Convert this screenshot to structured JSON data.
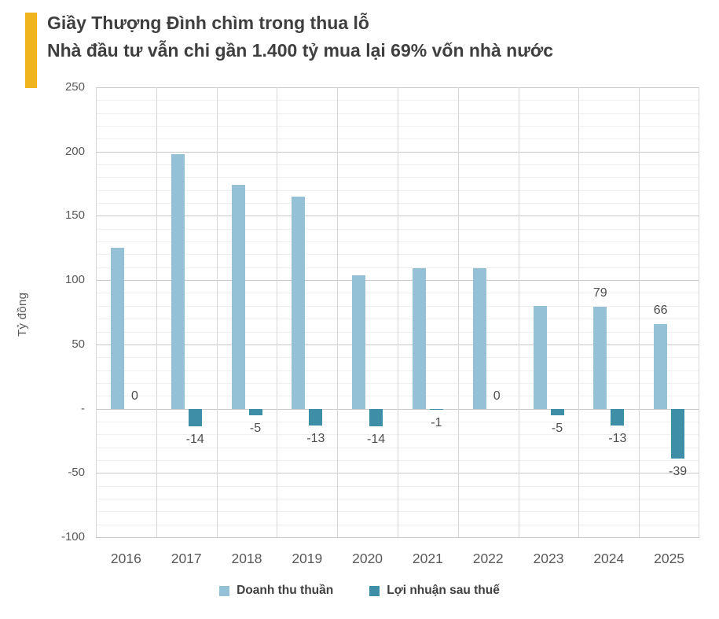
{
  "accent_color": "#F0B41E",
  "header": {
    "title_line1": "Giầy Thượng Đình chìm trong thua lỗ",
    "title_line2": "Nhà đầu tư vẫn chi gần 1.400 tỷ mua lại 69% vốn nhà nước"
  },
  "chart_data": {
    "type": "bar",
    "categories": [
      "2016",
      "2017",
      "2018",
      "2019",
      "2020",
      "2021",
      "2022",
      "2023",
      "2024",
      "2025"
    ],
    "series": [
      {
        "name": "Doanh thu thuần",
        "color": "#94C1D5",
        "values": [
          125,
          198,
          174,
          165,
          104,
          109,
          109,
          80,
          79,
          66
        ],
        "data_labels": [
          null,
          null,
          null,
          null,
          null,
          null,
          null,
          null,
          "79",
          "66"
        ]
      },
      {
        "name": "Lợi nhuận sau thuế",
        "color": "#3E8EA8",
        "values": [
          0,
          -14,
          -5,
          -13,
          -14,
          -1,
          0,
          -5,
          -13,
          -39
        ],
        "data_labels": [
          "0",
          "-14",
          "-5",
          "-13",
          "-14",
          "-1",
          "0",
          "-5",
          "-13",
          "-39"
        ]
      }
    ],
    "ylabel": "Tỷ đồng",
    "ylim": [
      -100,
      250
    ],
    "ytick_major_step": 50,
    "ytick_minor_step": 10,
    "yticks": [
      {
        "value": 250,
        "label": "250"
      },
      {
        "value": 200,
        "label": "200"
      },
      {
        "value": 150,
        "label": "150"
      },
      {
        "value": 100,
        "label": "100"
      },
      {
        "value": 50,
        "label": "50"
      },
      {
        "value": 0,
        "label": "-"
      },
      {
        "value": -50,
        "label": "-50"
      },
      {
        "value": -100,
        "label": "-100"
      }
    ],
    "grid": true,
    "legend_position": "bottom"
  }
}
